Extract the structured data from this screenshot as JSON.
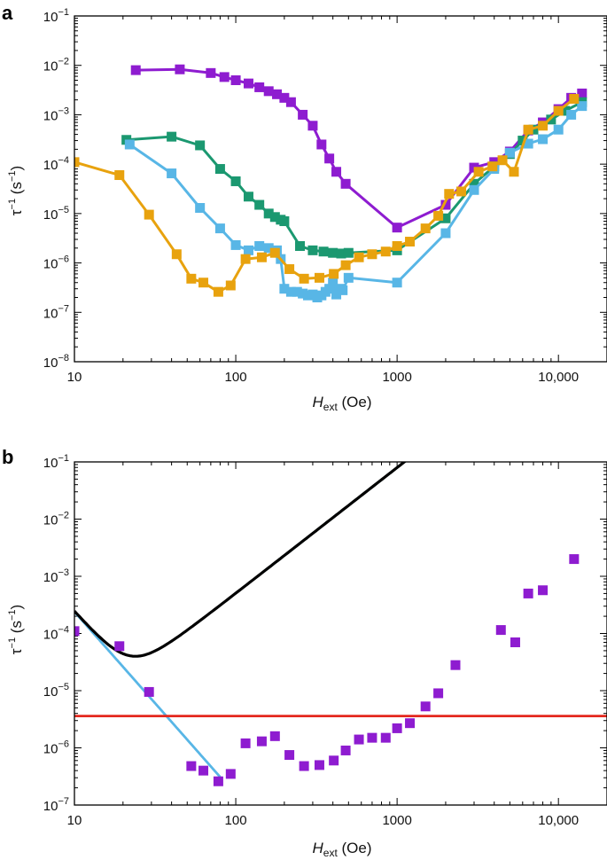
{
  "colors": {
    "purple": "#8e1cd0",
    "green": "#1b9870",
    "blue": "#58b6e6",
    "orange": "#e8a20e",
    "red": "#e4281e",
    "black": "#000000"
  },
  "chart_data": [
    {
      "panel_label": "a",
      "type": "line",
      "xscale": "log",
      "yscale": "log",
      "xlim": [
        10,
        20000
      ],
      "ylim": [
        1e-08,
        0.1
      ],
      "xticks": [
        {
          "value": 10,
          "label": "10"
        },
        {
          "value": 100,
          "label": "100"
        },
        {
          "value": 1000,
          "label": "1000"
        },
        {
          "value": 10000,
          "label": "10,000"
        }
      ],
      "yticks": [
        {
          "value": 1e-08,
          "base": "10",
          "exp": "−8"
        },
        {
          "value": 1e-07,
          "base": "10",
          "exp": "−7"
        },
        {
          "value": 1e-06,
          "base": "10",
          "exp": "−6"
        },
        {
          "value": 1e-05,
          "base": "10",
          "exp": "−5"
        },
        {
          "value": 0.0001,
          "base": "10",
          "exp": "−4"
        },
        {
          "value": 0.001,
          "base": "10",
          "exp": "−3"
        },
        {
          "value": 0.01,
          "base": "10",
          "exp": "−2"
        },
        {
          "value": 0.1,
          "base": "10",
          "exp": "−1"
        }
      ],
      "xlabel": {
        "main": "H",
        "sub": "ext",
        "unit": "(Oe)"
      },
      "ylabel": {
        "sym": "τ",
        "sup": "−1",
        "unit_open": "(s",
        "unit_sup": "−1",
        "unit_close": ")"
      },
      "series": [
        {
          "name": "purple",
          "color": "#8e1cd0",
          "x": [
            24,
            45,
            70,
            85,
            100,
            120,
            140,
            160,
            180,
            200,
            220,
            260,
            300,
            340,
            380,
            420,
            480,
            1000,
            2000,
            3000,
            4000,
            5000,
            6500,
            8000,
            10000,
            12000,
            14000
          ],
          "y": [
            0.008,
            0.0083,
            0.007,
            0.0058,
            0.005,
            0.0043,
            0.0036,
            0.003,
            0.0026,
            0.0022,
            0.0018,
            0.001,
            0.0006,
            0.00025,
            0.00013,
            7e-05,
            4e-05,
            5.2e-06,
            1.5e-05,
            8.5e-05,
            0.00011,
            0.00018,
            0.00048,
            0.0007,
            0.0013,
            0.0022,
            0.0027
          ]
        },
        {
          "name": "green",
          "color": "#1b9870",
          "x": [
            21,
            40,
            60,
            80,
            100,
            120,
            140,
            160,
            175,
            190,
            200,
            250,
            300,
            350,
            400,
            450,
            500,
            1000,
            2000,
            3000,
            4000,
            5000,
            6000,
            7000,
            9000,
            11000,
            14000
          ],
          "y": [
            0.00031,
            0.00036,
            0.00024,
            8e-05,
            4.5e-05,
            2.2e-05,
            1.5e-05,
            1e-05,
            8.5e-06,
            7.5e-06,
            7e-06,
            2.2e-06,
            1.8e-06,
            1.7e-06,
            1.6e-06,
            1.55e-06,
            1.6e-06,
            1.8e-06,
            8e-06,
            4e-05,
            9e-05,
            0.00016,
            0.0003,
            0.0005,
            0.0008,
            0.0012,
            0.0018
          ]
        },
        {
          "name": "blue",
          "color": "#58b6e6",
          "x": [
            22,
            40,
            60,
            80,
            100,
            120,
            140,
            160,
            180,
            190,
            200,
            220,
            240,
            260,
            280,
            300,
            320,
            340,
            360,
            380,
            400,
            420,
            440,
            460,
            500,
            1000,
            2000,
            3000,
            4000,
            5000,
            6500,
            8000,
            10000,
            12000,
            14000
          ],
          "y": [
            0.00025,
            6.5e-05,
            1.3e-05,
            5e-06,
            2.3e-06,
            1.8e-06,
            2.2e-06,
            2e-06,
            1.8e-06,
            1.2e-06,
            3e-07,
            2.6e-07,
            2.6e-07,
            2.4e-07,
            2.2e-07,
            2.3e-07,
            2e-07,
            2.2e-07,
            2.6e-07,
            3e-07,
            4e-07,
            2.3e-07,
            3e-07,
            2.8e-07,
            5e-07,
            4e-07,
            4e-06,
            3e-05,
            8e-05,
            0.00017,
            0.00026,
            0.00032,
            0.0005,
            0.001,
            0.0015
          ]
        },
        {
          "name": "orange",
          "color": "#e8a20e",
          "x": [
            10,
            19,
            29,
            43,
            53,
            63,
            78,
            93,
            115,
            145,
            175,
            215,
            265,
            330,
            405,
            480,
            580,
            700,
            850,
            1000,
            1200,
            1500,
            1800,
            2100,
            2500,
            3200,
            3900,
            4500,
            5300,
            6500,
            8000,
            10000,
            12500
          ],
          "y": [
            0.00011,
            6e-05,
            9.5e-06,
            1.5e-06,
            4.8e-07,
            4e-07,
            2.6e-07,
            3.5e-07,
            1.2e-06,
            1.3e-06,
            1.6e-06,
            7.5e-07,
            4.8e-07,
            5e-07,
            6e-07,
            9e-07,
            1.3e-06,
            1.5e-06,
            1.7e-06,
            2.2e-06,
            2.7e-06,
            5e-06,
            9e-06,
            2.5e-05,
            2.8e-05,
            7e-05,
            9e-05,
            0.00012,
            7e-05,
            0.0005,
            0.0006,
            0.0012,
            0.0021
          ]
        }
      ]
    },
    {
      "panel_label": "b",
      "type": "scatter",
      "xscale": "log",
      "yscale": "log",
      "xlim": [
        10,
        20000
      ],
      "ylim": [
        1e-07,
        0.1
      ],
      "xticks": [
        {
          "value": 10,
          "label": "10"
        },
        {
          "value": 100,
          "label": "100"
        },
        {
          "value": 1000,
          "label": "1000"
        },
        {
          "value": 10000,
          "label": "10,000"
        }
      ],
      "yticks": [
        {
          "value": 1e-07,
          "base": "10",
          "exp": "−7"
        },
        {
          "value": 1e-06,
          "base": "10",
          "exp": "−6"
        },
        {
          "value": 1e-05,
          "base": "10",
          "exp": "−5"
        },
        {
          "value": 0.0001,
          "base": "10",
          "exp": "−4"
        },
        {
          "value": 0.001,
          "base": "10",
          "exp": "−3"
        },
        {
          "value": 0.01,
          "base": "10",
          "exp": "−2"
        },
        {
          "value": 0.1,
          "base": "10",
          "exp": "−1"
        }
      ],
      "xlabel": {
        "main": "H",
        "sub": "ext",
        "unit": "(Oe)"
      },
      "ylabel": {
        "sym": "τ",
        "sup": "−1",
        "unit_open": "(s",
        "unit_sup": "−1",
        "unit_close": ")"
      },
      "points": {
        "color": "#8e1cd0",
        "x": [
          10,
          19,
          29,
          53,
          63,
          78,
          93,
          115,
          145,
          175,
          215,
          265,
          330,
          405,
          480,
          580,
          700,
          850,
          1000,
          1200,
          1500,
          1800,
          2300,
          4400,
          5400,
          6500,
          8000,
          12500
        ],
        "y": [
          0.00011,
          6e-05,
          9.5e-06,
          4.8e-07,
          4e-07,
          2.6e-07,
          3.5e-07,
          1.2e-06,
          1.3e-06,
          1.6e-06,
          7.5e-07,
          4.8e-07,
          5e-07,
          6e-07,
          9e-07,
          1.4e-06,
          1.5e-06,
          1.5e-06,
          2.2e-06,
          2.7e-06,
          5.3e-06,
          9e-06,
          2.8e-05,
          0.000115,
          7e-05,
          0.0005,
          0.00057,
          0.002
        ]
      },
      "lines": [
        {
          "name": "quantum-tunneling",
          "color": "#58b6e6",
          "kind": "power",
          "coef": 0.00024,
          "ref": 10,
          "exp": -3.2,
          "xrange": [
            10,
            80
          ]
        },
        {
          "name": "direct-process",
          "color": "#1b9870",
          "kind": "power",
          "coef": 2e-08,
          "ref": 1,
          "exp": 2.2,
          "xrange": [
            150,
            20000
          ]
        },
        {
          "name": "constant",
          "color": "#e4281e",
          "kind": "const",
          "value": 3.6e-06,
          "xrange": [
            10,
            20000
          ]
        },
        {
          "name": "total-fit",
          "color": "#000000",
          "kind": "sum",
          "xrange": [
            10,
            20000
          ]
        }
      ]
    }
  ]
}
